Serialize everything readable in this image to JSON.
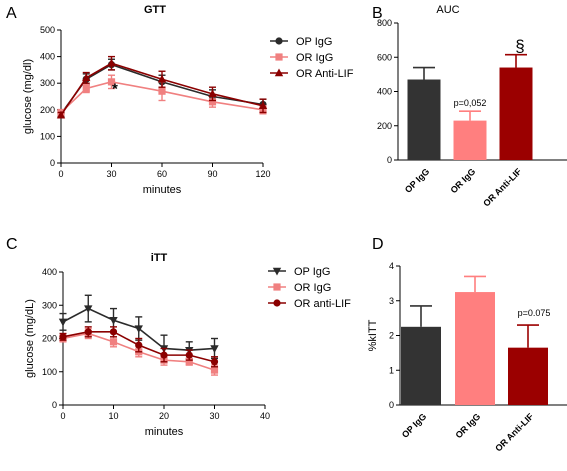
{
  "colors": {
    "op": "#2b2b2b",
    "or_igg": "#f08080",
    "or_anti": "#8b0000",
    "bar_op": "#333333",
    "bar_origg": "#ff7f7f",
    "bar_oranti": "#9b0000"
  },
  "chart_data": [
    {
      "panel": "A",
      "type": "line",
      "title": "GTT",
      "xlabel": "minutes",
      "ylabel": "glucose (mg/dl)",
      "xlim": [
        0,
        120
      ],
      "ylim": [
        0,
        500
      ],
      "x_ticks": [
        "0",
        "30",
        "60",
        "90",
        "120"
      ],
      "y_ticks": [
        "0",
        "100",
        "200",
        "300",
        "400",
        "500"
      ],
      "x": [
        0,
        15,
        30,
        60,
        90,
        120
      ],
      "annotation": "*",
      "legend_position": "top-right",
      "series": [
        {
          "name": "OP IgG",
          "marker": "circle",
          "values": [
            185,
            315,
            370,
            305,
            250,
            220
          ],
          "errors": [
            10,
            20,
            20,
            25,
            25,
            20
          ]
        },
        {
          "name": "OR IgG",
          "marker": "square",
          "values": [
            190,
            280,
            305,
            270,
            230,
            200
          ],
          "errors": [
            10,
            15,
            25,
            35,
            20,
            15
          ]
        },
        {
          "name": "OR Anti-LIF",
          "marker": "triangle",
          "values": [
            180,
            320,
            375,
            315,
            260,
            215
          ],
          "errors": [
            10,
            20,
            25,
            30,
            25,
            25
          ]
        }
      ]
    },
    {
      "panel": "B",
      "type": "bar",
      "title": "AUC",
      "ylim": [
        0,
        800
      ],
      "y_ticks": [
        "0",
        "200",
        "400",
        "600",
        "800"
      ],
      "categories": [
        "OP IgG",
        "OR IgG",
        "OR Anti-LIF"
      ],
      "values": [
        470,
        230,
        540
      ],
      "errors": [
        70,
        55,
        75
      ],
      "annotations": [
        "p=0,052",
        "§"
      ]
    },
    {
      "panel": "C",
      "type": "line",
      "title": "iTT",
      "xlabel": "minutes",
      "ylabel": "glucose (mg/dL)",
      "xlim": [
        0,
        40
      ],
      "ylim": [
        0,
        400
      ],
      "x_ticks": [
        "0",
        "10",
        "20",
        "30",
        "40"
      ],
      "y_ticks": [
        "0",
        "100",
        "200",
        "300",
        "400"
      ],
      "x": [
        0,
        5,
        10,
        15,
        20,
        25,
        30
      ],
      "legend_position": "top-right",
      "series": [
        {
          "name": "OP IgG",
          "marker": "triangle-down",
          "values": [
            250,
            290,
            255,
            230,
            170,
            165,
            170
          ],
          "errors": [
            25,
            40,
            35,
            35,
            40,
            25,
            30
          ]
        },
        {
          "name": "OR IgG",
          "marker": "square",
          "values": [
            200,
            215,
            190,
            160,
            135,
            130,
            105
          ],
          "errors": [
            10,
            15,
            15,
            15,
            15,
            10,
            15
          ]
        },
        {
          "name": "OR anti-LIF",
          "marker": "circle",
          "values": [
            205,
            220,
            220,
            180,
            150,
            150,
            130
          ],
          "errors": [
            10,
            15,
            15,
            20,
            20,
            15,
            15
          ]
        }
      ]
    },
    {
      "panel": "D",
      "type": "bar",
      "ylabel": "%kITT",
      "ylim": [
        0,
        4
      ],
      "y_ticks": [
        "0",
        "1",
        "2",
        "3",
        "4"
      ],
      "categories": [
        "OP IgG",
        "OR IgG",
        "OR Anti-LIF"
      ],
      "values": [
        2.25,
        3.25,
        1.65
      ],
      "errors": [
        0.6,
        0.45,
        0.65
      ],
      "annotations": [
        "p=0.075"
      ]
    }
  ]
}
